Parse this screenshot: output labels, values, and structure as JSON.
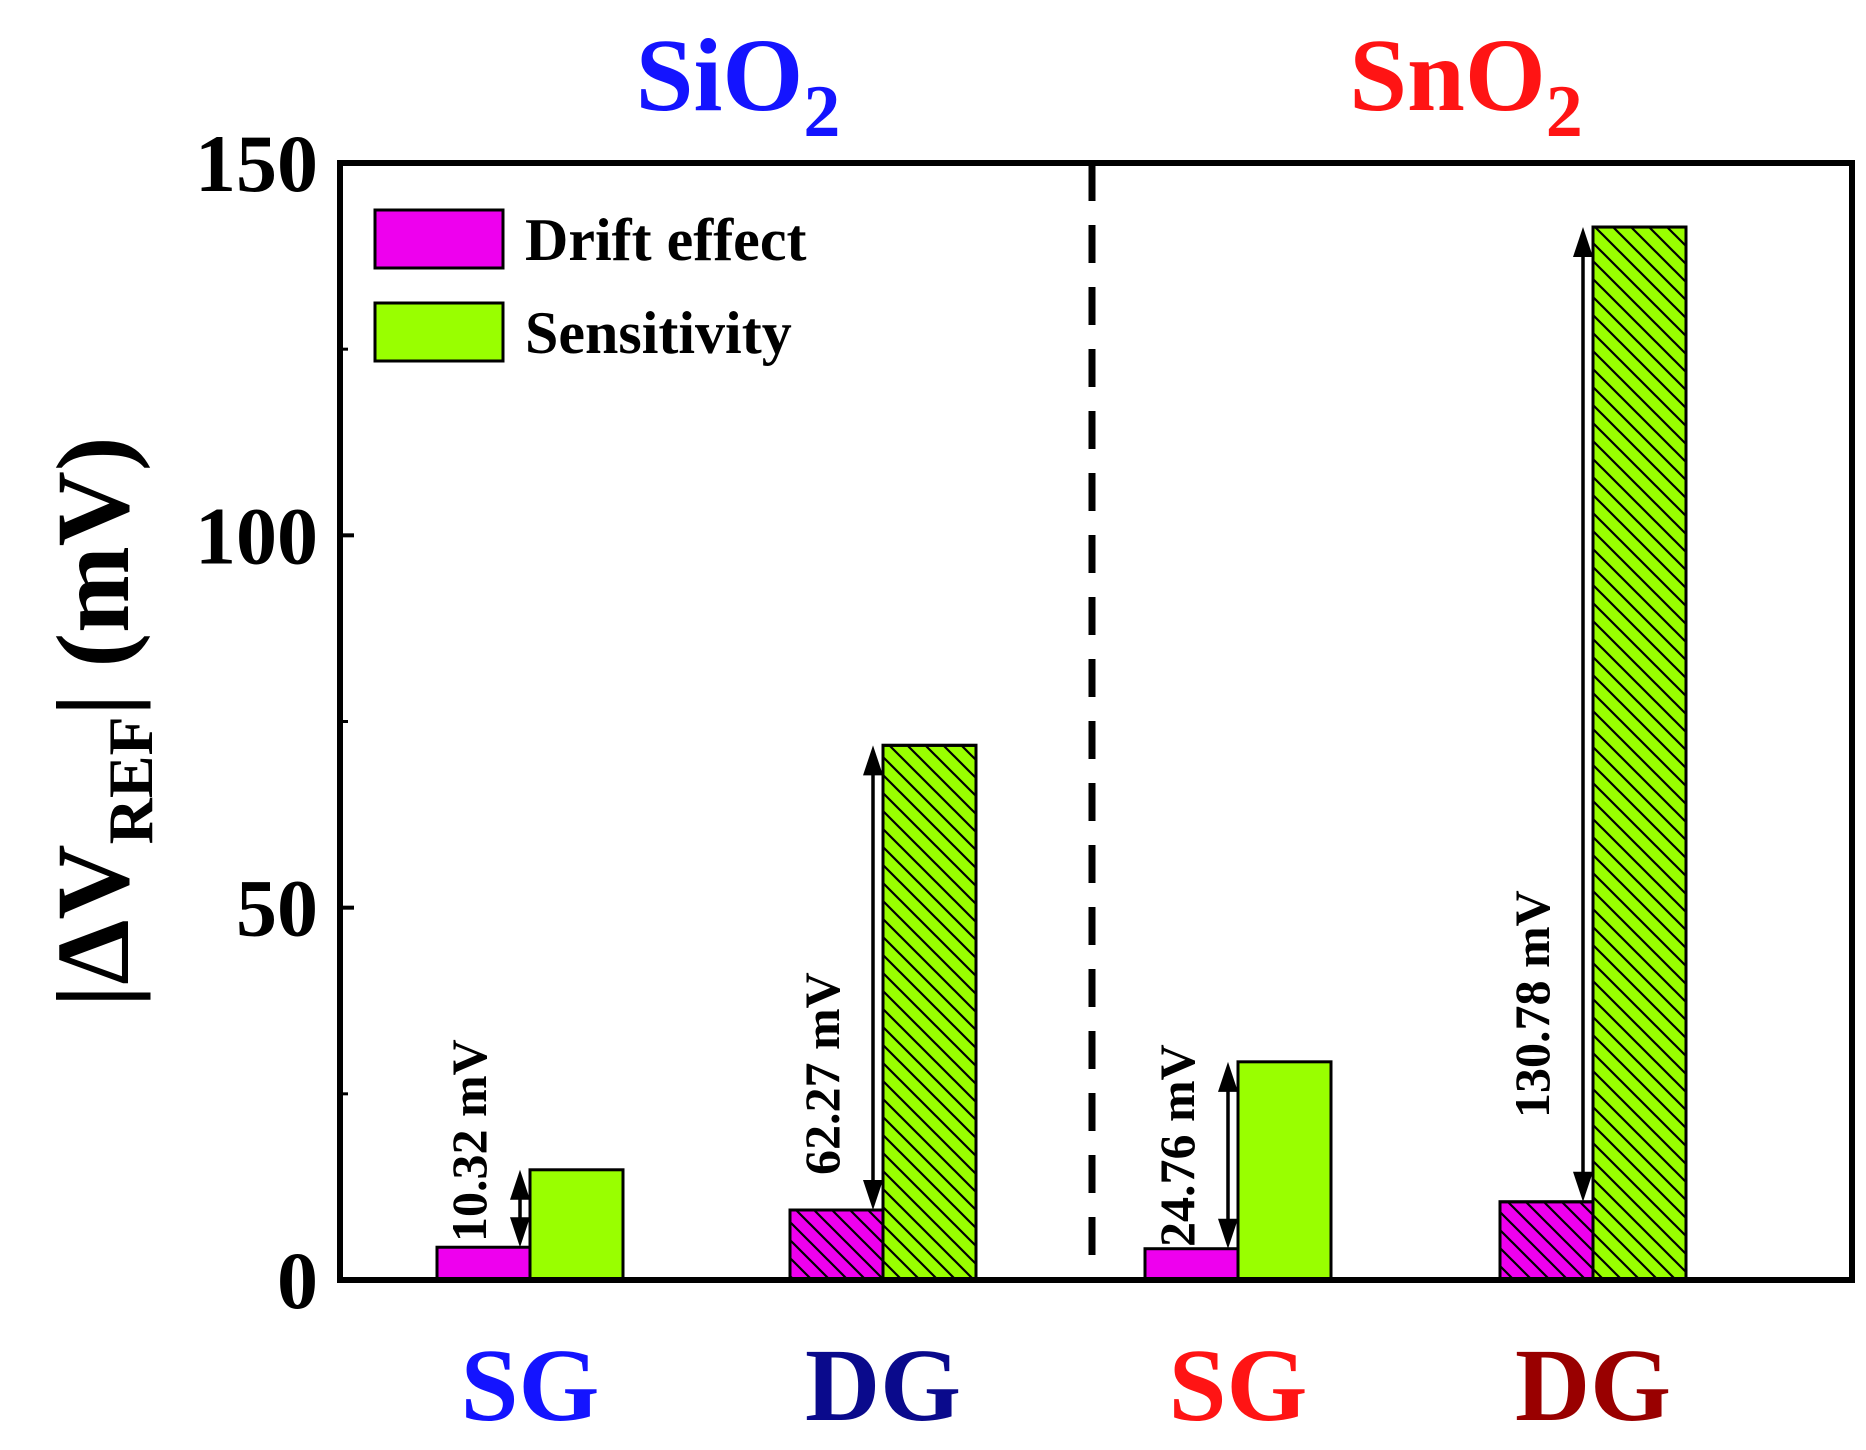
{
  "chart_data": {
    "type": "bar",
    "groups": [
      {
        "material": "SiO",
        "subscript": "2",
        "color": "#1414ff"
      },
      {
        "material": "SnO",
        "subscript": "2",
        "color": "#ff1414"
      }
    ],
    "categories": [
      {
        "label": "SG",
        "group": 0,
        "color": "#1414ff"
      },
      {
        "label": "DG",
        "group": 0,
        "color": "#0a0a8c"
      },
      {
        "label": "SG",
        "group": 1,
        "color": "#ff1414"
      },
      {
        "label": "DG",
        "group": 1,
        "color": "#990000"
      }
    ],
    "series": [
      {
        "name": "Drift effect",
        "color": "#ee00ee",
        "values": [
          4.4,
          9.4,
          4.2,
          10.5
        ],
        "hatched": [
          false,
          true,
          false,
          true
        ]
      },
      {
        "name": "Sensitivity",
        "color": "#99ff00",
        "values": [
          14.8,
          71.8,
          29.3,
          141.4
        ],
        "hatched": [
          false,
          true,
          false,
          true
        ]
      }
    ],
    "annotations": [
      {
        "text": "10.32 mV",
        "category": 0
      },
      {
        "text": "62.27 mV",
        "category": 1
      },
      {
        "text": "24.76 mV",
        "category": 2
      },
      {
        "text": "130.78 mV",
        "category": 3
      }
    ],
    "ylabel": {
      "bars": "|",
      "delta": "Δ",
      "v": "V",
      "sub": "REF",
      "unit": "(mV)"
    },
    "ylim": [
      0,
      150
    ],
    "yticks": [
      0,
      50,
      100,
      150
    ],
    "yminor": [
      25,
      75,
      125
    ],
    "legend_position": "top-left"
  }
}
